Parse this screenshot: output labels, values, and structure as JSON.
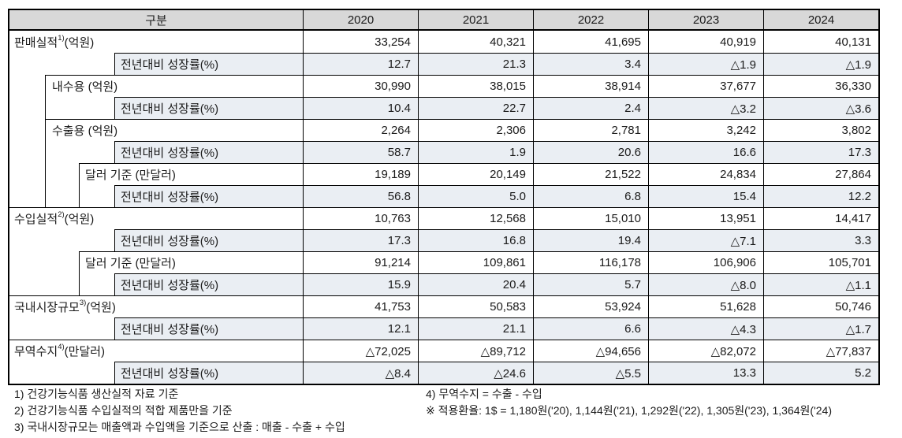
{
  "colors": {
    "header_bg": "#d8d8d8",
    "growth_row_bg": "#eaeef3",
    "border": "#000000"
  },
  "table": {
    "header": {
      "category_label": "구분",
      "years": [
        "2020",
        "2021",
        "2022",
        "2023",
        "2024"
      ]
    },
    "rows": [
      {
        "pre": "판매실적",
        "sup": "1)",
        "post": " (억원)",
        "values": [
          "33,254",
          "40,321",
          "41,695",
          "40,919",
          "40,131"
        ]
      },
      {
        "pre": "전년대비 성장률(%)",
        "sup": "",
        "post": "",
        "values": [
          "12.7",
          "21.3",
          "3.4",
          "△1.9",
          "△1.9"
        ]
      },
      {
        "pre": "내수용 (억원)",
        "sup": "",
        "post": "",
        "values": [
          "30,990",
          "38,015",
          "38,914",
          "37,677",
          "36,330"
        ]
      },
      {
        "pre": "전년대비 성장률(%)",
        "sup": "",
        "post": "",
        "values": [
          "10.4",
          "22.7",
          "2.4",
          "△3.2",
          "△3.6"
        ]
      },
      {
        "pre": "수출용 (억원)",
        "sup": "",
        "post": "",
        "values": [
          "2,264",
          "2,306",
          "2,781",
          "3,242",
          "3,802"
        ]
      },
      {
        "pre": "전년대비 성장률(%)",
        "sup": "",
        "post": "",
        "values": [
          "58.7",
          "1.9",
          "20.6",
          "16.6",
          "17.3"
        ]
      },
      {
        "pre": "달러 기준 (만달러)",
        "sup": "",
        "post": "",
        "values": [
          "19,189",
          "20,149",
          "21,522",
          "24,834",
          "27,864"
        ]
      },
      {
        "pre": "전년대비 성장률(%)",
        "sup": "",
        "post": "",
        "values": [
          "56.8",
          "5.0",
          "6.8",
          "15.4",
          "12.2"
        ]
      },
      {
        "pre": "수입실적",
        "sup": "2)",
        "post": " (억원)",
        "values": [
          "10,763",
          "12,568",
          "15,010",
          "13,951",
          "14,417"
        ]
      },
      {
        "pre": "전년대비 성장률(%)",
        "sup": "",
        "post": "",
        "values": [
          "17.3",
          "16.8",
          "19.4",
          "△7.1",
          "3.3"
        ]
      },
      {
        "pre": "달러 기준 (만달러)",
        "sup": "",
        "post": "",
        "values": [
          "91,214",
          "109,861",
          "116,178",
          "106,906",
          "105,701"
        ]
      },
      {
        "pre": "전년대비 성장률(%)",
        "sup": "",
        "post": "",
        "values": [
          "15.9",
          "20.4",
          "5.7",
          "△8.0",
          "△1.1"
        ]
      },
      {
        "pre": "국내시장규모",
        "sup": "3)",
        "post": " (억원)",
        "values": [
          "41,753",
          "50,583",
          "53,924",
          "51,628",
          "50,746"
        ]
      },
      {
        "pre": "전년대비 성장률(%)",
        "sup": "",
        "post": "",
        "values": [
          "12.1",
          "21.1",
          "6.6",
          "△4.3",
          "△1.7"
        ]
      },
      {
        "pre": "무역수지",
        "sup": "4)",
        "post": " (만달러)",
        "values": [
          "△72,025",
          "△89,712",
          "△94,656",
          "△82,072",
          "△77,837"
        ]
      },
      {
        "pre": "전년대비 성장률(%)",
        "sup": "",
        "post": "",
        "values": [
          "△8.4",
          "△24.6",
          "△5.5",
          "13.3",
          "5.2"
        ]
      }
    ]
  },
  "footnotes": {
    "left": [
      "1) 건강기능식품 생산실적 자료 기준",
      "2) 건강기능식품 수입실적의 적합 제품만을 기준",
      "3) 국내시장규모는 매출액과 수입액을 기준으로 산출 : 매출 - 수출 + 수입"
    ],
    "right": [
      "4) 무역수지 = 수출 - 수입",
      "※ 적용환율: 1$ = 1,180원('20), 1,144원('21), 1,292원('22), 1,305원('23), 1,364원('24)"
    ]
  }
}
